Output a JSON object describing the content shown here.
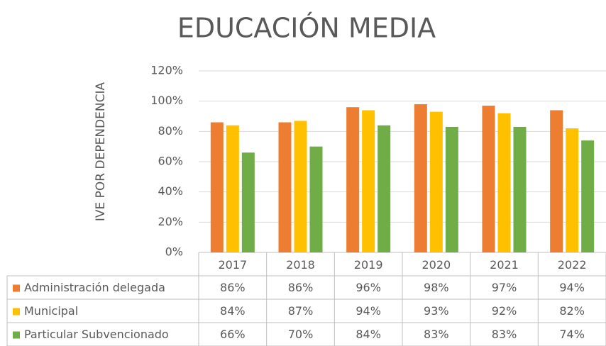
{
  "chart_data": {
    "type": "bar",
    "title": "EDUCACIÓN MEDIA",
    "y_axis_label": "IVE POR DEPENDENCIA",
    "categories": [
      "2017",
      "2018",
      "2019",
      "2020",
      "2021",
      "2022"
    ],
    "series": [
      {
        "name": "Administración delegada",
        "color": "#ed7d31",
        "values": [
          86,
          86,
          96,
          98,
          97,
          94
        ],
        "value_labels": [
          "86%",
          "86%",
          "96%",
          "98%",
          "97%",
          "94%"
        ]
      },
      {
        "name": "Municipal",
        "color": "#ffc000",
        "values": [
          84,
          87,
          94,
          93,
          92,
          82
        ],
        "value_labels": [
          "84%",
          "87%",
          "94%",
          "93%",
          "92%",
          "82%"
        ]
      },
      {
        "name": "Particular Subvencionado",
        "color": "#70ad47",
        "values": [
          66,
          70,
          84,
          83,
          83,
          74
        ],
        "value_labels": [
          "66%",
          "70%",
          "84%",
          "83%",
          "83%",
          "74%"
        ]
      }
    ],
    "ylim": [
      0,
      120
    ],
    "yticks": [
      {
        "value": 0,
        "label": "0%"
      },
      {
        "value": 20,
        "label": "20%"
      },
      {
        "value": 40,
        "label": "40%"
      },
      {
        "value": 60,
        "label": "60%"
      },
      {
        "value": 80,
        "label": "80%"
      },
      {
        "value": 100,
        "label": "100%"
      },
      {
        "value": 120,
        "label": "120%"
      }
    ],
    "grid": true
  }
}
